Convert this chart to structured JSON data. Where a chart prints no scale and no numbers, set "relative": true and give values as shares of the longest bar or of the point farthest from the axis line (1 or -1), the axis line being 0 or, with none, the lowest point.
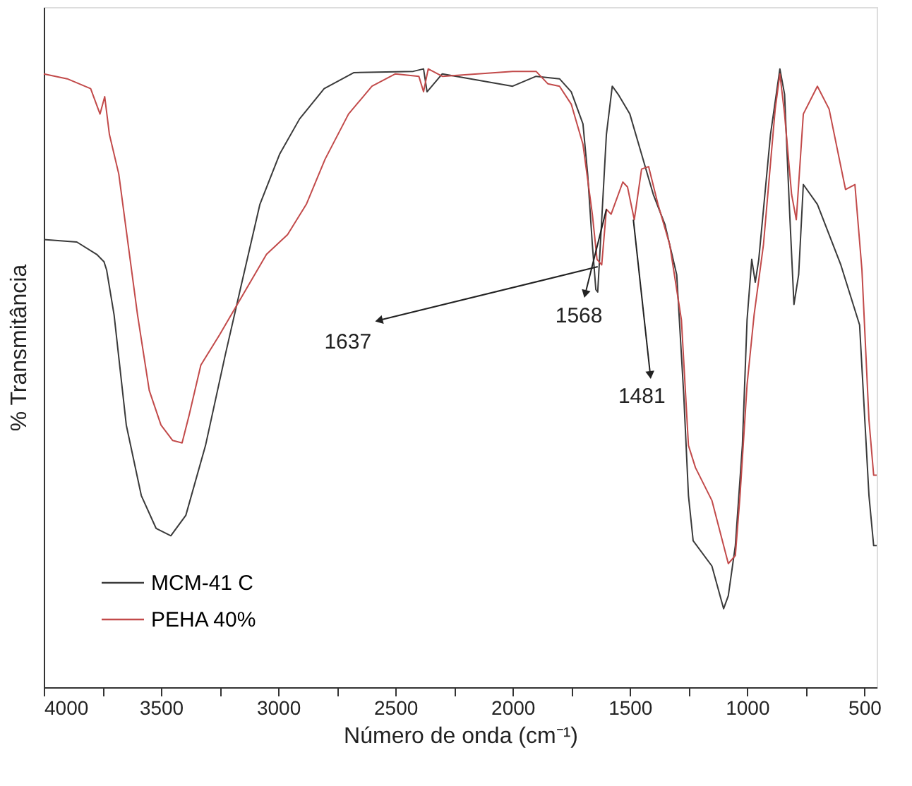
{
  "chart_data": {
    "type": "line",
    "relative": true,
    "xlabel": "Número de onda (cm⁻¹)",
    "ylabel": "% Transmitância",
    "xlim": [
      4000,
      447
    ],
    "xticks": [
      4000,
      {
        "value": 3750,
        "label": null
      },
      3500,
      {
        "value": 3250,
        "label": null
      },
      3000,
      {
        "value": 2750,
        "label": null
      },
      2500,
      {
        "value": 2250,
        "label": null
      },
      2000,
      {
        "value": 1750,
        "label": null
      },
      1500,
      {
        "value": 1250,
        "label": null
      },
      1000,
      {
        "value": 750,
        "label": null
      },
      500
    ],
    "grid": false,
    "legend": "bottom left",
    "marker": "none",
    "line_style": "solid",
    "series": [
      {
        "name": "MCM-41 C",
        "color": "#3a3a3a",
        "x": [
          4000,
          3859,
          3774,
          3743,
          3732,
          3700,
          3648,
          3584,
          3521,
          3458,
          3394,
          3310,
          3226,
          3162,
          3078,
          2994,
          2909,
          2804,
          2677,
          2424,
          2380,
          2365,
          2300,
          2000,
          1900,
          1800,
          1750,
          1700,
          1680,
          1660,
          1645,
          1637,
          1620,
          1600,
          1575,
          1550,
          1500,
          1450,
          1400,
          1350,
          1300,
          1270,
          1250,
          1230,
          1150,
          1100,
          1080,
          1050,
          1020,
          1000,
          980,
          965,
          950,
          900,
          860,
          840,
          820,
          800,
          780,
          760,
          700,
          600,
          520,
          480,
          460,
          447
        ],
        "values": [
          0.724,
          0.72,
          0.7,
          0.688,
          0.675,
          0.602,
          0.424,
          0.31,
          0.257,
          0.245,
          0.278,
          0.391,
          0.537,
          0.643,
          0.781,
          0.862,
          0.919,
          0.968,
          0.994,
          0.996,
          1.0,
          0.963,
          0.992,
          0.972,
          0.988,
          0.984,
          0.963,
          0.911,
          0.83,
          0.716,
          0.643,
          0.639,
          0.756,
          0.894,
          0.972,
          0.959,
          0.927,
          0.862,
          0.797,
          0.748,
          0.667,
          0.472,
          0.31,
          0.237,
          0.196,
          0.127,
          0.148,
          0.229,
          0.391,
          0.594,
          0.692,
          0.655,
          0.692,
          0.894,
          1.0,
          0.959,
          0.781,
          0.619,
          0.667,
          0.813,
          0.781,
          0.683,
          0.586,
          0.31,
          0.229,
          0.229
        ]
      },
      {
        "name": "PEHA 40%",
        "color": "#c24a4a",
        "x": [
          4000,
          3900,
          3800,
          3760,
          3740,
          3720,
          3680,
          3640,
          3600,
          3550,
          3500,
          3450,
          3410,
          3380,
          3330,
          3250,
          3150,
          3050,
          2960,
          2880,
          2800,
          2700,
          2600,
          2500,
          2400,
          2380,
          2360,
          2300,
          2000,
          1900,
          1850,
          1800,
          1750,
          1700,
          1660,
          1640,
          1620,
          1600,
          1580,
          1530,
          1510,
          1481,
          1450,
          1420,
          1380,
          1330,
          1280,
          1250,
          1220,
          1150,
          1080,
          1050,
          1030,
          1000,
          970,
          930,
          880,
          860,
          840,
          810,
          790,
          760,
          700,
          650,
          580,
          540,
          510,
          480,
          460,
          447
        ],
        "values": [
          0.992,
          0.984,
          0.968,
          0.927,
          0.955,
          0.894,
          0.83,
          0.716,
          0.602,
          0.48,
          0.424,
          0.399,
          0.395,
          0.44,
          0.521,
          0.57,
          0.635,
          0.7,
          0.732,
          0.781,
          0.854,
          0.927,
          0.972,
          0.992,
          0.988,
          0.963,
          1.0,
          0.988,
          0.996,
          0.996,
          0.976,
          0.972,
          0.943,
          0.878,
          0.765,
          0.692,
          0.683,
          0.773,
          0.765,
          0.817,
          0.809,
          0.756,
          0.838,
          0.842,
          0.781,
          0.716,
          0.594,
          0.391,
          0.355,
          0.302,
          0.2,
          0.213,
          0.31,
          0.489,
          0.602,
          0.716,
          0.935,
          0.992,
          0.927,
          0.797,
          0.756,
          0.927,
          0.972,
          0.935,
          0.805,
          0.813,
          0.675,
          0.432,
          0.343,
          0.343
        ]
      }
    ],
    "annotations": [
      {
        "text": "1637",
        "x": 1637,
        "y": 0.68
      },
      {
        "text": "1568",
        "x": 1600,
        "y": 0.773
      },
      {
        "text": "1481",
        "x": 1485,
        "y": 0.756
      }
    ]
  }
}
